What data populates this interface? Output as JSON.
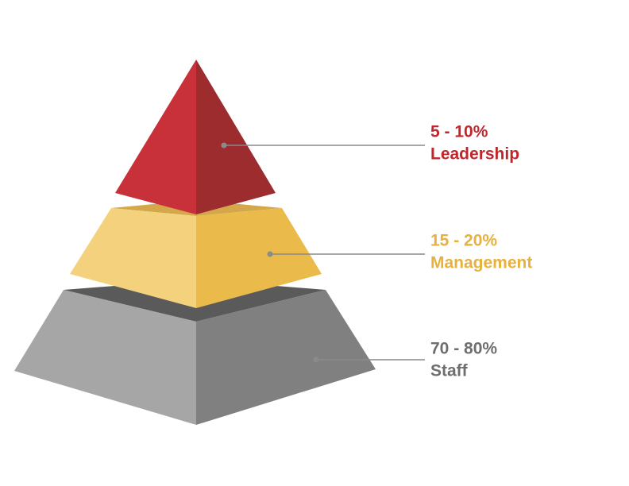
{
  "levels": [
    {
      "range": "5 - 10%",
      "label": "Leadership"
    },
    {
      "range": "15 - 20%",
      "label": "Management"
    },
    {
      "range": "70 - 80%",
      "label": "Staff"
    }
  ]
}
